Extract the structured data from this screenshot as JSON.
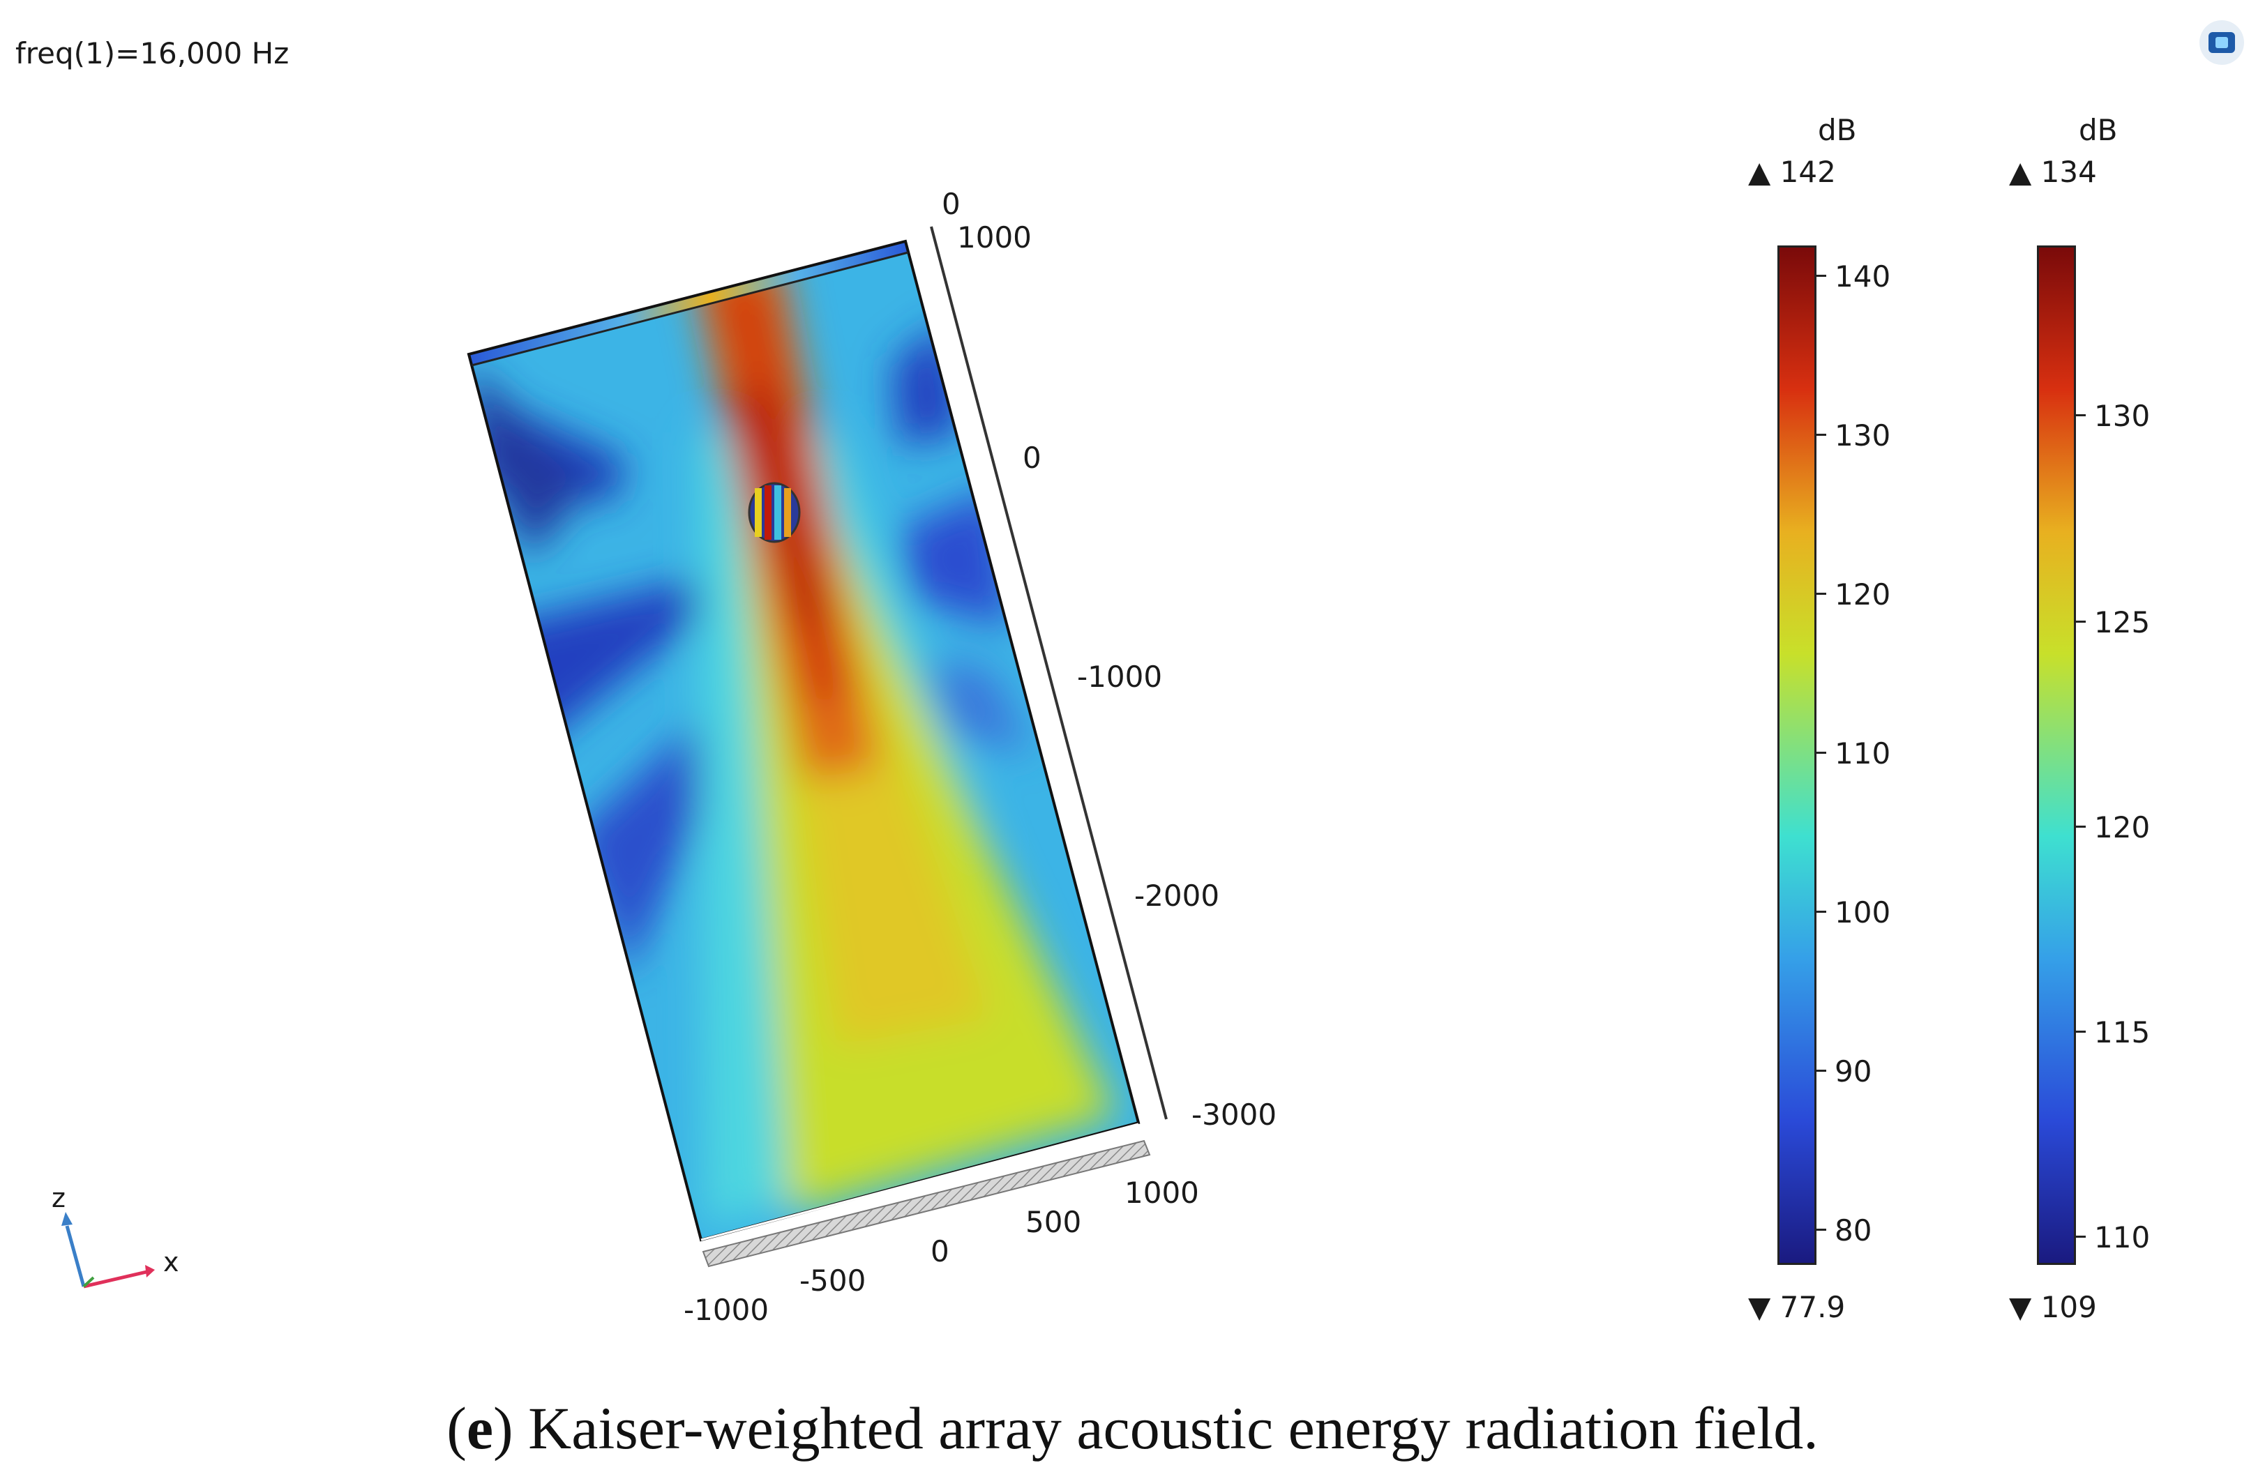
{
  "header": {
    "frequency_label": "freq(1)=16,000 Hz"
  },
  "plot": {
    "vertical_axis_ticks": [
      "0",
      "0",
      "-1000",
      "-2000",
      "-3000"
    ],
    "top_axis_tick": "1000",
    "bottom_axis_ticks": [
      "-1000",
      "-500",
      "0",
      "500",
      "1000"
    ]
  },
  "triad": {
    "z_label": "z",
    "x_label": "x"
  },
  "colorbars": [
    {
      "unit": "dB",
      "max_label": "142",
      "min_label": "77.9",
      "ticks": [
        "140",
        "130",
        "120",
        "110",
        "100",
        "90",
        "80"
      ]
    },
    {
      "unit": "dB",
      "max_label": "134",
      "min_label": "109",
      "ticks": [
        "130",
        "125",
        "120",
        "115",
        "110"
      ]
    }
  ],
  "caption": {
    "letter": "e",
    "text": ") Kaiser-weighted array acoustic energy radiation field."
  },
  "colors": {
    "colormap": [
      "#1a1a80",
      "#2a4ad8",
      "#35a0e8",
      "#3ee0d0",
      "#c8e02a",
      "#e8b020",
      "#d83010",
      "#7a0a0a"
    ]
  }
}
